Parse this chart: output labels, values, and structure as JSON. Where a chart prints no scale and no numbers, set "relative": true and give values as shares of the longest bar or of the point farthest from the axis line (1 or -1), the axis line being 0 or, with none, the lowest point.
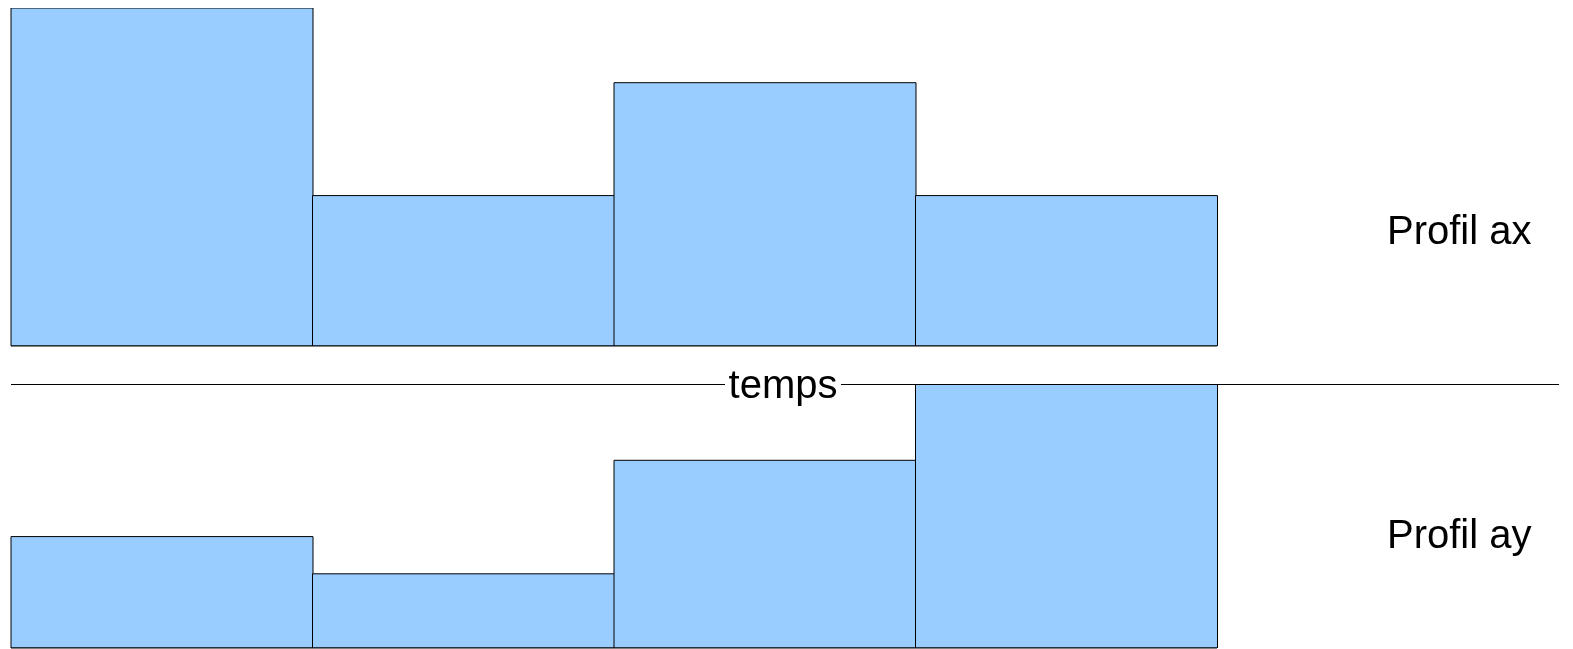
{
  "chart_data": [
    {
      "type": "bar",
      "relative": true,
      "categories": [
        null,
        null,
        null,
        null
      ],
      "values": [
        1,
        0.445,
        0.779,
        0.445
      ],
      "color": "#99ccff",
      "ylabel": "Profil ax",
      "xlabel": "temps"
    },
    {
      "type": "bar",
      "relative": true,
      "categories": [
        null,
        null,
        null,
        null
      ],
      "values": [
        0.422,
        0.281,
        0.711,
        1
      ],
      "color": "#99ccff",
      "ylabel": "Profil ay"
    }
  ]
}
